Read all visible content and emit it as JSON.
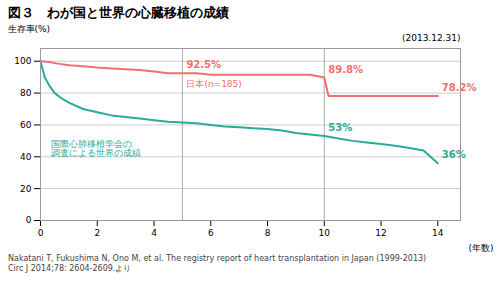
{
  "chart_data": {
    "type": "line",
    "title": "図３　わが国と世界の心臓移植の成績",
    "subtitle": "(2013.12.31)",
    "caption": "Nakatani T, Fukushima N, Ono M, et al. The registry report of heart transplantation in Japan (1999-2013)\nCirc J 2014;78: 2604-2609.より",
    "xlabel": "(年数)",
    "ylabel": "生存率(%)",
    "xlim": [
      0,
      14.8
    ],
    "ylim": [
      0,
      108
    ],
    "xticks": [
      0,
      2,
      4,
      6,
      8,
      10,
      12,
      14
    ],
    "yticks": [
      0,
      20,
      40,
      60,
      80,
      100
    ],
    "grid": true,
    "vlines": [
      5,
      10
    ],
    "series": [
      {
        "name": "日本(n=185)",
        "color": "#f07070",
        "x": [
          0,
          0.3,
          0.6,
          1,
          1.5,
          2,
          2.5,
          3,
          3.5,
          4,
          4.5,
          5,
          5.5,
          6,
          6.5,
          7,
          7.5,
          8,
          8.5,
          9,
          9.5,
          10,
          10.15,
          10.5,
          11,
          11.5,
          12,
          12.5,
          13,
          13.5,
          14
        ],
        "values": [
          100,
          99.5,
          98.5,
          97.5,
          96.8,
          96,
          95.5,
          95,
          94.5,
          93.5,
          92.5,
          92.5,
          92.5,
          91.5,
          91.5,
          91.5,
          91.5,
          91.5,
          91.5,
          91.5,
          91.5,
          89.8,
          78.2,
          78.2,
          78.2,
          78.2,
          78.2,
          78.2,
          78.2,
          78.2,
          78.2
        ],
        "annotations": [
          {
            "x": 5,
            "y": 92.5,
            "text": "92.5%"
          },
          {
            "x": 10,
            "y": 89.8,
            "text": "89.8%"
          },
          {
            "x": 14,
            "y": 78.2,
            "text": "78.2%"
          }
        ]
      },
      {
        "name": "国際心肺移植学会の\n調査による世界の成績",
        "color": "#2aab9a",
        "x": [
          0,
          0.15,
          0.3,
          0.5,
          0.8,
          1,
          1.5,
          2,
          2.5,
          3,
          3.5,
          4,
          4.5,
          5,
          5.5,
          6,
          6.5,
          7,
          7.5,
          8,
          8.5,
          9,
          9.5,
          10,
          10.5,
          11,
          11.5,
          12,
          12.5,
          13,
          13.5,
          14
        ],
        "values": [
          100,
          90,
          85,
          80,
          76,
          74,
          70,
          68,
          66,
          65,
          64,
          63,
          62,
          61.5,
          61,
          60,
          59,
          58.5,
          58,
          57.5,
          56.5,
          55,
          54,
          53,
          51.5,
          50,
          49,
          48,
          47,
          45.5,
          44,
          36
        ],
        "annotations": [
          {
            "x": 10,
            "y": 53,
            "text": "53%"
          },
          {
            "x": 14,
            "y": 36,
            "text": "36%"
          }
        ]
      }
    ]
  }
}
